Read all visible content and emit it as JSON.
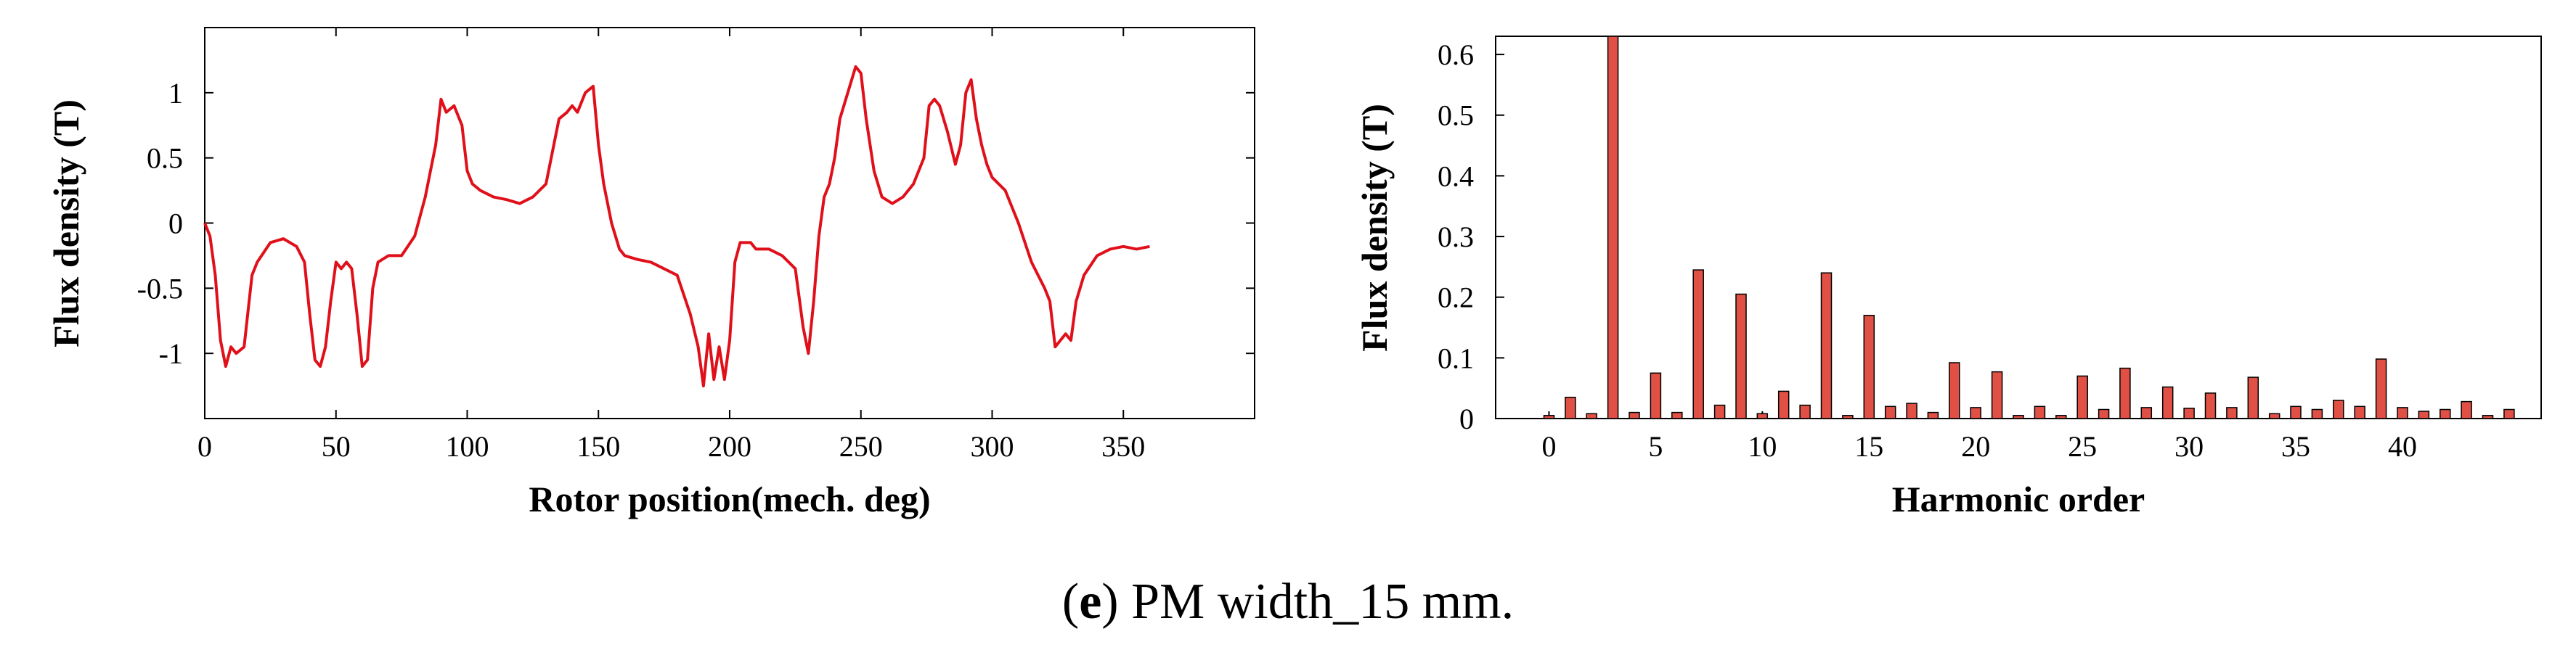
{
  "chart_data": [
    {
      "type": "line",
      "title": "",
      "xlabel": "Rotor position(mech. deg)",
      "ylabel": "Flux density (T)",
      "xlim": [
        0,
        400
      ],
      "ylim": [
        -1.5,
        1.5
      ],
      "xticks": [
        "0",
        "50",
        "100",
        "150",
        "200",
        "250",
        "300",
        "350"
      ],
      "yticks": [
        "-1",
        "-0.5",
        "0",
        "0.5",
        "1"
      ],
      "color": "#e0101a",
      "series": [
        {
          "name": "Flux density",
          "x": [
            0,
            2,
            4,
            6,
            8,
            10,
            12,
            15,
            18,
            20,
            25,
            30,
            35,
            38,
            40,
            42,
            44,
            46,
            48,
            50,
            52,
            54,
            56,
            58,
            60,
            62,
            64,
            66,
            70,
            75,
            80,
            84,
            86,
            88,
            90,
            92,
            95,
            98,
            100,
            102,
            105,
            110,
            115,
            120,
            125,
            130,
            135,
            138,
            140,
            142,
            145,
            148,
            150,
            152,
            155,
            158,
            160,
            165,
            170,
            175,
            180,
            185,
            188,
            190,
            192,
            194,
            196,
            198,
            200,
            202,
            204,
            206,
            208,
            210,
            215,
            220,
            225,
            228,
            230,
            232,
            234,
            236,
            238,
            240,
            242,
            245,
            248,
            250,
            252,
            255,
            258,
            262,
            266,
            270,
            274,
            276,
            278,
            280,
            283,
            286,
            288,
            290,
            292,
            294,
            296,
            298,
            300,
            305,
            310,
            315,
            320,
            322,
            324,
            326,
            328,
            330,
            332,
            335,
            340,
            345,
            350,
            355,
            360
          ],
          "y": [
            0,
            -0.1,
            -0.4,
            -0.9,
            -1.1,
            -0.95,
            -1.0,
            -0.95,
            -0.4,
            -0.3,
            -0.15,
            -0.12,
            -0.18,
            -0.3,
            -0.7,
            -1.05,
            -1.1,
            -0.95,
            -0.6,
            -0.3,
            -0.35,
            -0.3,
            -0.35,
            -0.7,
            -1.1,
            -1.05,
            -0.5,
            -0.3,
            -0.25,
            -0.25,
            -0.1,
            0.2,
            0.4,
            0.6,
            0.95,
            0.85,
            0.9,
            0.75,
            0.4,
            0.3,
            0.25,
            0.2,
            0.18,
            0.15,
            0.2,
            0.3,
            0.8,
            0.85,
            0.9,
            0.85,
            1.0,
            1.05,
            0.6,
            0.3,
            0.0,
            -0.2,
            -0.25,
            -0.28,
            -0.3,
            -0.35,
            -0.4,
            -0.7,
            -0.95,
            -1.25,
            -0.85,
            -1.2,
            -0.95,
            -1.2,
            -0.9,
            -0.3,
            -0.15,
            -0.15,
            -0.15,
            -0.2,
            -0.2,
            -0.25,
            -0.35,
            -0.8,
            -1.0,
            -0.6,
            -0.1,
            0.2,
            0.3,
            0.5,
            0.8,
            1.0,
            1.2,
            1.15,
            0.8,
            0.4,
            0.2,
            0.15,
            0.2,
            0.3,
            0.5,
            0.9,
            0.95,
            0.9,
            0.7,
            0.45,
            0.6,
            1.0,
            1.1,
            0.8,
            0.6,
            0.45,
            0.35,
            0.25,
            0.0,
            -0.3,
            -0.5,
            -0.6,
            -0.95,
            -0.9,
            -0.85,
            -0.9,
            -0.6,
            -0.4,
            -0.25,
            -0.2,
            -0.18,
            -0.2,
            -0.18
          ]
        }
      ]
    },
    {
      "type": "bar",
      "title": "",
      "xlabel": "Harmonic order",
      "ylabel": "Flux density (T)",
      "xlim": [
        -2.5,
        46.5
      ],
      "ylim": [
        0,
        0.63
      ],
      "xticks": [
        "0",
        "5",
        "10",
        "15",
        "20",
        "25",
        "30",
        "35",
        "40"
      ],
      "yticks": [
        "0",
        "0.1",
        "0.2",
        "0.3",
        "0.4",
        "0.5",
        "0.6"
      ],
      "color": "#e05045",
      "categories": [
        0,
        1,
        2,
        3,
        4,
        5,
        6,
        7,
        8,
        9,
        10,
        11,
        12,
        13,
        14,
        15,
        16,
        17,
        18,
        19,
        20,
        21,
        22,
        23,
        24,
        25,
        26,
        27,
        28,
        29,
        30,
        31,
        32,
        33,
        34,
        35,
        36,
        37,
        38,
        39,
        40,
        41,
        42,
        43,
        44,
        45
      ],
      "values": [
        0.005,
        0.035,
        0.008,
        0.63,
        0.01,
        0.075,
        0.01,
        0.245,
        0.022,
        0.205,
        0.008,
        0.045,
        0.022,
        0.24,
        0.005,
        0.17,
        0.02,
        0.025,
        0.01,
        0.092,
        0.018,
        0.077,
        0.005,
        0.02,
        0.005,
        0.07,
        0.015,
        0.083,
        0.018,
        0.052,
        0.017,
        0.042,
        0.018,
        0.068,
        0.008,
        0.02,
        0.015,
        0.03,
        0.02,
        0.098,
        0.018,
        0.012,
        0.015,
        0.028,
        0.005,
        0.015
      ]
    }
  ],
  "caption": {
    "letter": "e",
    "text": "PM width_15 mm."
  }
}
